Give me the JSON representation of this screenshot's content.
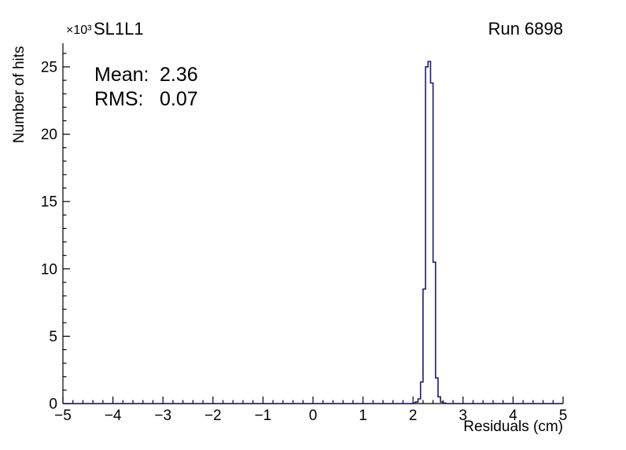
{
  "header": {
    "multiplier": "×10³",
    "title": "SL1L1",
    "run_label": "Run 6898"
  },
  "stats": {
    "mean_label": "Mean:",
    "mean_value": "2.36",
    "rms_label": "RMS:",
    "rms_value": "0.07"
  },
  "axes": {
    "x_title": "Residuals (cm)",
    "y_title": "Number of hits"
  },
  "chart_data": {
    "type": "bar",
    "subtype": "step-histogram",
    "title": "SL1L1",
    "annotation": "Run 6898",
    "xlabel": "Residuals (cm)",
    "ylabel": "Number of hits",
    "y_multiplier_label": "×10³",
    "y_unit_multiplier": 1000,
    "mean": 2.36,
    "rms": 0.07,
    "xlim": [
      -5,
      5
    ],
    "ylim": [
      0,
      26.75
    ],
    "x_tick_values": [
      -5,
      -4,
      -3,
      -2,
      -1,
      0,
      1,
      2,
      3,
      4,
      5
    ],
    "x_tick_labels": [
      "−5",
      "−4",
      "−3",
      "−2",
      "−1",
      "0",
      "1",
      "2",
      "3",
      "4",
      "5"
    ],
    "x_minor_step": 0.2,
    "y_tick_values": [
      0,
      5,
      10,
      15,
      20,
      25
    ],
    "y_tick_labels": [
      "0",
      "5",
      "10",
      "15",
      "20",
      "25"
    ],
    "y_minor_step": 1,
    "bin_width": 0.05,
    "bins": [
      {
        "x": 2.0,
        "y": 0.05
      },
      {
        "x": 2.05,
        "y": 0.12
      },
      {
        "x": 2.1,
        "y": 0.35
      },
      {
        "x": 2.15,
        "y": 1.6
      },
      {
        "x": 2.2,
        "y": 8.5
      },
      {
        "x": 2.25,
        "y": 25.0
      },
      {
        "x": 2.3,
        "y": 25.4
      },
      {
        "x": 2.35,
        "y": 23.8
      },
      {
        "x": 2.4,
        "y": 10.5
      },
      {
        "x": 2.45,
        "y": 1.9
      },
      {
        "x": 2.5,
        "y": 0.5
      },
      {
        "x": 2.55,
        "y": 0.12
      },
      {
        "x": 2.6,
        "y": 0.04
      }
    ],
    "line_color": "#1c1c72",
    "axis_color": "#000000",
    "grid": false,
    "legend": "none"
  }
}
